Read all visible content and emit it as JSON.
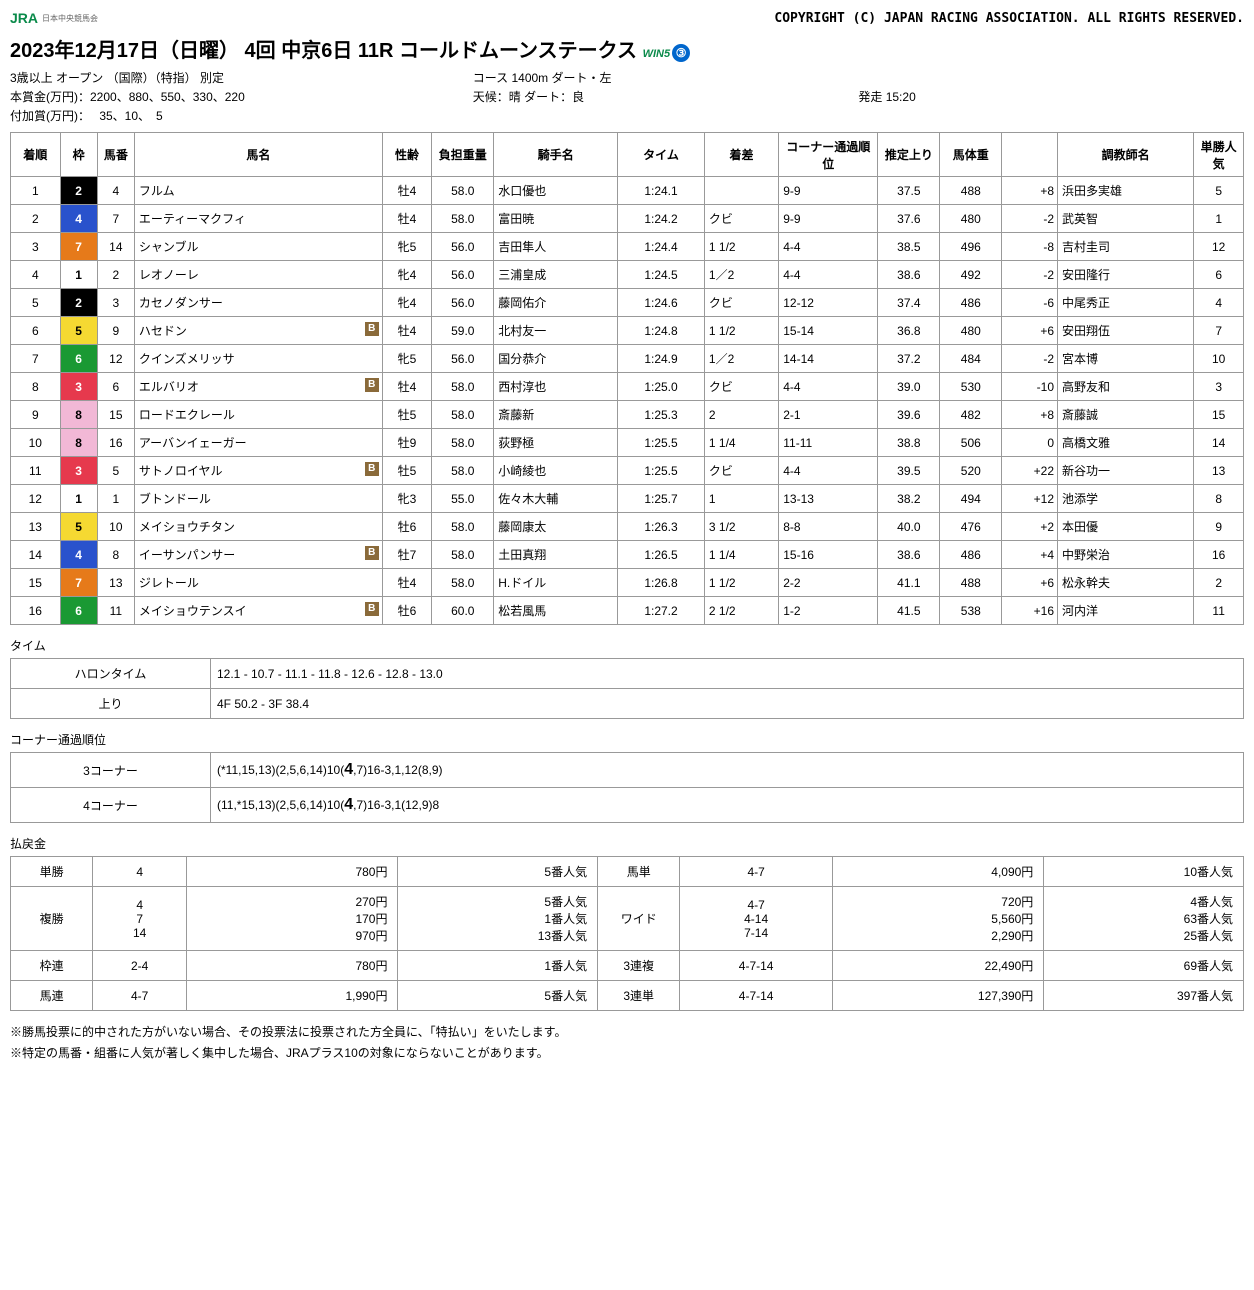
{
  "header": {
    "logo": "JRA",
    "logo_sub": "日本中央競馬会",
    "copy": "COPYRIGHT (C) JAPAN RACING ASSOCIATION. ALL RIGHTS RESERVED."
  },
  "title": {
    "text": "2023年12月17日（日曜） 4回 中京6日 11R コールドムーンステークス",
    "win5": "WIN5",
    "badge": "③"
  },
  "meta": {
    "l1": "3歳以上 オープン （国際）（特指） 別定",
    "r1": "コース 1400m ダート・左",
    "l2": "本賞金(万円)：2200、880、550、330、220",
    "c2": "天候：晴 ダート：良",
    "r2": "発走 15:20",
    "l3": "付加賞(万円)：　 35、10、　5"
  },
  "cols": [
    "着順",
    "枠",
    "馬番",
    "馬名",
    "性齢",
    "負担重量",
    "騎手名",
    "タイム",
    "着差",
    "コーナー通過順位",
    "推定上り",
    "馬体重",
    "",
    "調教師名",
    "単勝人気"
  ],
  "rows": [
    {
      "p": "1",
      "w": "2",
      "n": "4",
      "hn": "フルム",
      "b": 0,
      "sa": "牡4",
      "wt": "58.0",
      "j": "水口優也",
      "t": "1:24.1",
      "m": "",
      "cp": "9-9",
      "ag": "37.5",
      "bw": "488",
      "bd": "+8",
      "tr": "浜田多実雄",
      "pp": "5"
    },
    {
      "p": "2",
      "w": "4",
      "n": "7",
      "hn": "エーティーマクフィ",
      "b": 0,
      "sa": "牡4",
      "wt": "58.0",
      "j": "富田暁",
      "t": "1:24.2",
      "m": "クビ",
      "cp": "9-9",
      "ag": "37.6",
      "bw": "480",
      "bd": "-2",
      "tr": "武英智",
      "pp": "1"
    },
    {
      "p": "3",
      "w": "7",
      "n": "14",
      "hn": "シャンブル",
      "b": 0,
      "sa": "牝5",
      "wt": "56.0",
      "j": "吉田隼人",
      "t": "1:24.4",
      "m": "1 1/2",
      "cp": "4-4",
      "ag": "38.5",
      "bw": "496",
      "bd": "-8",
      "tr": "吉村圭司",
      "pp": "12"
    },
    {
      "p": "4",
      "w": "1",
      "n": "2",
      "hn": "レオノーレ",
      "b": 0,
      "sa": "牝4",
      "wt": "56.0",
      "j": "三浦皇成",
      "t": "1:24.5",
      "m": "1／2",
      "cp": "4-4",
      "ag": "38.6",
      "bw": "492",
      "bd": "-2",
      "tr": "安田隆行",
      "pp": "6"
    },
    {
      "p": "5",
      "w": "2",
      "n": "3",
      "hn": "カセノダンサー",
      "b": 0,
      "sa": "牝4",
      "wt": "56.0",
      "j": "藤岡佑介",
      "t": "1:24.6",
      "m": "クビ",
      "cp": "12-12",
      "ag": "37.4",
      "bw": "486",
      "bd": "-6",
      "tr": "中尾秀正",
      "pp": "4"
    },
    {
      "p": "6",
      "w": "5",
      "n": "9",
      "hn": "ハセドン",
      "b": 1,
      "sa": "牡4",
      "wt": "59.0",
      "j": "北村友一",
      "t": "1:24.8",
      "m": "1 1/2",
      "cp": "15-14",
      "ag": "36.8",
      "bw": "480",
      "bd": "+6",
      "tr": "安田翔伍",
      "pp": "7"
    },
    {
      "p": "7",
      "w": "6",
      "n": "12",
      "hn": "クインズメリッサ",
      "b": 0,
      "sa": "牝5",
      "wt": "56.0",
      "j": "国分恭介",
      "t": "1:24.9",
      "m": "1／2",
      "cp": "14-14",
      "ag": "37.2",
      "bw": "484",
      "bd": "-2",
      "tr": "宮本博",
      "pp": "10"
    },
    {
      "p": "8",
      "w": "3",
      "n": "6",
      "hn": "エルバリオ",
      "b": 1,
      "sa": "牡4",
      "wt": "58.0",
      "j": "西村淳也",
      "t": "1:25.0",
      "m": "クビ",
      "cp": "4-4",
      "ag": "39.0",
      "bw": "530",
      "bd": "-10",
      "tr": "高野友和",
      "pp": "3"
    },
    {
      "p": "9",
      "w": "8",
      "n": "15",
      "hn": "ロードエクレール",
      "b": 0,
      "sa": "牡5",
      "wt": "58.0",
      "j": "斎藤新",
      "t": "1:25.3",
      "m": "2",
      "cp": "2-1",
      "ag": "39.6",
      "bw": "482",
      "bd": "+8",
      "tr": "斎藤誠",
      "pp": "15"
    },
    {
      "p": "10",
      "w": "8",
      "n": "16",
      "hn": "アーバンイェーガー",
      "b": 0,
      "sa": "牡9",
      "wt": "58.0",
      "j": "荻野極",
      "t": "1:25.5",
      "m": "1 1/4",
      "cp": "11-11",
      "ag": "38.8",
      "bw": "506",
      "bd": "0",
      "tr": "高橋文雅",
      "pp": "14"
    },
    {
      "p": "11",
      "w": "3",
      "n": "5",
      "hn": "サトノロイヤル",
      "b": 1,
      "sa": "牡5",
      "wt": "58.0",
      "j": "小崎綾也",
      "t": "1:25.5",
      "m": "クビ",
      "cp": "4-4",
      "ag": "39.5",
      "bw": "520",
      "bd": "+22",
      "tr": "新谷功一",
      "pp": "13"
    },
    {
      "p": "12",
      "w": "1",
      "n": "1",
      "hn": "ブトンドール",
      "b": 0,
      "sa": "牝3",
      "wt": "55.0",
      "j": "佐々木大輔",
      "t": "1:25.7",
      "m": "1",
      "cp": "13-13",
      "ag": "38.2",
      "bw": "494",
      "bd": "+12",
      "tr": "池添学",
      "pp": "8"
    },
    {
      "p": "13",
      "w": "5",
      "n": "10",
      "hn": "メイショウチタン",
      "b": 0,
      "sa": "牡6",
      "wt": "58.0",
      "j": "藤岡康太",
      "t": "1:26.3",
      "m": "3 1/2",
      "cp": "8-8",
      "ag": "40.0",
      "bw": "476",
      "bd": "+2",
      "tr": "本田優",
      "pp": "9"
    },
    {
      "p": "14",
      "w": "4",
      "n": "8",
      "hn": "イーサンパンサー",
      "b": 1,
      "sa": "牡7",
      "wt": "58.0",
      "j": "土田真翔",
      "t": "1:26.5",
      "m": "1 1/4",
      "cp": "15-16",
      "ag": "38.6",
      "bw": "486",
      "bd": "+4",
      "tr": "中野栄治",
      "pp": "16"
    },
    {
      "p": "15",
      "w": "7",
      "n": "13",
      "hn": "ジレトール",
      "b": 0,
      "sa": "牡4",
      "wt": "58.0",
      "j": "H.ドイル",
      "t": "1:26.8",
      "m": "1 1/2",
      "cp": "2-2",
      "ag": "41.1",
      "bw": "488",
      "bd": "+6",
      "tr": "松永幹夫",
      "pp": "2"
    },
    {
      "p": "16",
      "w": "6",
      "n": "11",
      "hn": "メイショウテンスイ",
      "b": 1,
      "sa": "牡6",
      "wt": "60.0",
      "j": "松若風馬",
      "t": "1:27.2",
      "m": "2 1/2",
      "cp": "1-2",
      "ag": "41.5",
      "bw": "538",
      "bd": "+16",
      "tr": "河内洋",
      "pp": "11"
    }
  ],
  "time": {
    "title": "タイム",
    "haron_l": "ハロンタイム",
    "haron": "12.1 - 10.7 - 11.1 - 11.8 - 12.6 - 12.8 - 13.0",
    "agari_l": "上り",
    "agari": "4F 50.2 - 3F 38.4"
  },
  "corner": {
    "title": "コーナー通過順位",
    "c3_l": "3コーナー",
    "c3_a": "(*11,15,13)(2,5,6,14)10(",
    "c3_b": "4",
    "c3_c": ",7)16-3,1,12(8,9)",
    "c4_l": "4コーナー",
    "c4_a": "(11,*15,13)(2,5,6,14)10(",
    "c4_b": "4",
    "c4_c": ",7)16-3,1(12,9)8"
  },
  "pay": {
    "title": "払戻金",
    "rows": [
      [
        "単勝",
        "4",
        "780円",
        "5番人気",
        "馬単",
        "4-7",
        "4,090円",
        "10番人気"
      ],
      [
        "複勝",
        "4\n7\n14",
        "270円\n170円\n970円",
        "5番人気\n1番人気\n13番人気",
        "ワイド",
        "4-7\n4-14\n7-14",
        "720円\n5,560円\n2,290円",
        "4番人気\n63番人気\n25番人気"
      ],
      [
        "枠連",
        "2-4",
        "780円",
        "1番人気",
        "3連複",
        "4-7-14",
        "22,490円",
        "69番人気"
      ],
      [
        "馬連",
        "4-7",
        "1,990円",
        "5番人気",
        "3連単",
        "4-7-14",
        "127,390円",
        "397番人気"
      ]
    ]
  },
  "notes": [
    "※勝馬投票に的中された方がいない場合、その投票法に投票された方全員に、「特払い」をいたします。",
    "※特定の馬番・組番に人気が著しく集中した場合、JRAプラス10の対象にならないことがあります。"
  ]
}
